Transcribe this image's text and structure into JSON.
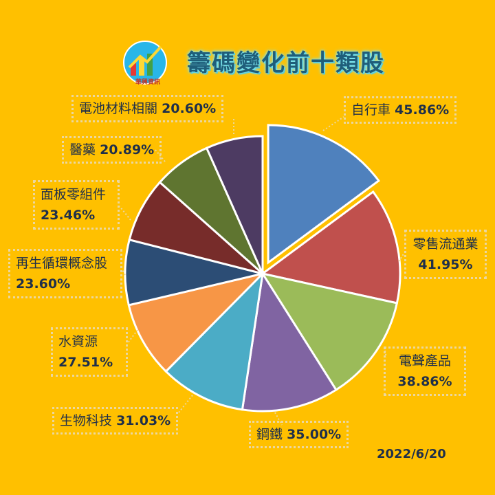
{
  "header": {
    "title": "籌碼變化前十類股",
    "logo_caption": "華興資訊"
  },
  "footer": {
    "date": "2022/6/20"
  },
  "chart_data": {
    "type": "pie",
    "title": "籌碼變化前十類股",
    "slices": [
      {
        "label": "自行車",
        "value": 45.86,
        "display": "45.86%",
        "color": "#4F81BD",
        "exploded": true
      },
      {
        "label": "零售流通業",
        "value": 41.95,
        "display": "41.95%",
        "color": "#C0504D"
      },
      {
        "label": "電聲產品",
        "value": 38.86,
        "display": "38.86%",
        "color": "#9BBB59"
      },
      {
        "label": "鋼鐵",
        "value": 35.0,
        "display": "35.00%",
        "color": "#8064A2"
      },
      {
        "label": "生物科技",
        "value": 31.03,
        "display": "31.03%",
        "color": "#4BACC6"
      },
      {
        "label": "水資源",
        "value": 27.51,
        "display": "27.51%",
        "color": "#F79646"
      },
      {
        "label": "再生循環概念股",
        "value": 23.6,
        "display": "23.60%",
        "color": "#2C4D75"
      },
      {
        "label": "面板零組件",
        "value": 23.46,
        "display": "23.46%",
        "color": "#772C2A"
      },
      {
        "label": "醫藥",
        "value": 20.89,
        "display": "20.89%",
        "color": "#5F7530"
      },
      {
        "label": "電池材料相關",
        "value": 20.6,
        "display": "20.60%",
        "color": "#4D3B62"
      }
    ],
    "legend": "none",
    "data_labels": "outside-with-leader-lines"
  }
}
